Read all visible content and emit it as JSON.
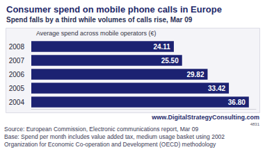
{
  "chart_data": {
    "type": "bar",
    "title": "Consumer spend on mobile phone calls in Europe",
    "subtitle": "Spend falls by a third while volumes of calls rise, Mar 09",
    "xlabel": "Average spend across mobile operators (€)",
    "orientation": "horizontal",
    "categories": [
      "2008",
      "2007",
      "2006",
      "2005",
      "2004"
    ],
    "values": [
      24.11,
      25.5,
      29.82,
      33.42,
      36.8
    ],
    "value_labels": [
      "24.11",
      "25.50",
      "29.82",
      "33.42",
      "36.80"
    ],
    "color": "#1c2272",
    "data_labels": true,
    "tick_labels": "y",
    "grid": false,
    "xlim": [
      0,
      38
    ],
    "annotations": [
      "www.DigitalStrategyConsulting.com",
      "4831",
      "Source: European Commission, Electronic communications report, Mar 09",
      "Base: Spend per month includes value added tax, medium usage basket using 2002",
      "Organization for Economic Co-operation and Development (OECD) methodology"
    ]
  }
}
